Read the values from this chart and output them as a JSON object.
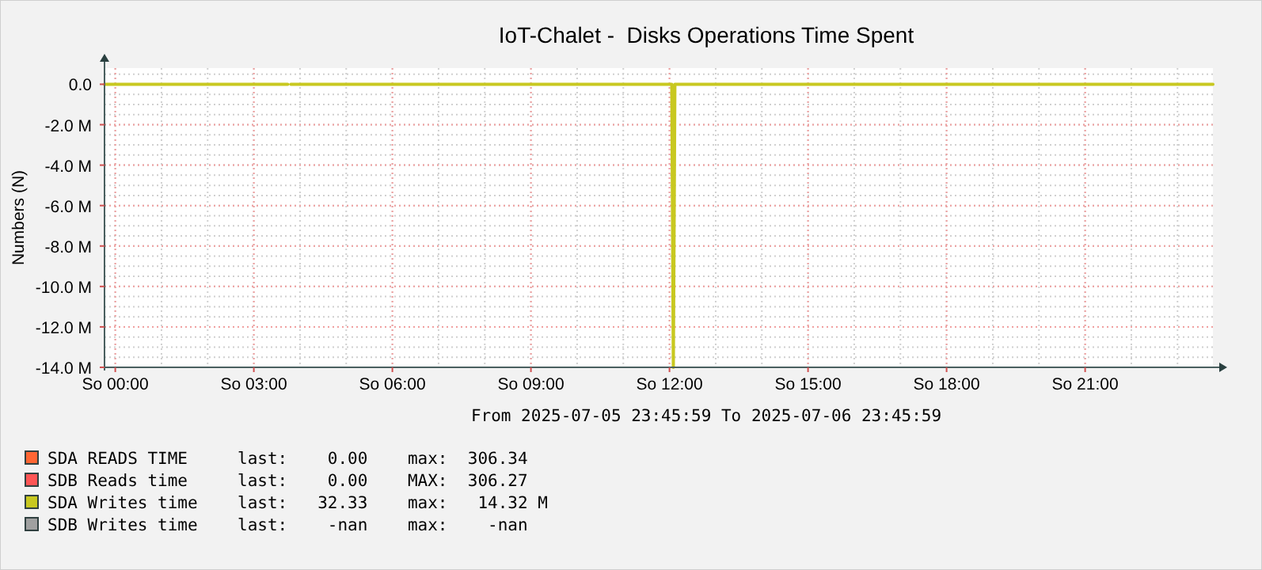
{
  "chart_data": {
    "type": "line",
    "title": "IoT-Chalet -  Disks Operations Time Spent",
    "ylabel": "Numbers (N)",
    "xlim": [
      "2025-07-05T23:46",
      "2025-07-06T23:46"
    ],
    "xticks": [
      {
        "value": "2025-07-06T00:00",
        "label": "So 00:00"
      },
      {
        "value": "2025-07-06T03:00",
        "label": "So 03:00"
      },
      {
        "value": "2025-07-06T06:00",
        "label": "So 06:00"
      },
      {
        "value": "2025-07-06T09:00",
        "label": "So 09:00"
      },
      {
        "value": "2025-07-06T12:00",
        "label": "So 12:00"
      },
      {
        "value": "2025-07-06T15:00",
        "label": "So 15:00"
      },
      {
        "value": "2025-07-06T18:00",
        "label": "So 18:00"
      },
      {
        "value": "2025-07-06T21:00",
        "label": "So 21:00"
      }
    ],
    "ylim": [
      -14000000,
      800000
    ],
    "yticks": [
      {
        "value": 0,
        "label": "0.0"
      },
      {
        "value": -2000000,
        "label": "-2.0 M"
      },
      {
        "value": -4000000,
        "label": "-4.0 M"
      },
      {
        "value": -6000000,
        "label": "-6.0 M"
      },
      {
        "value": -8000000,
        "label": "-8.0 M"
      },
      {
        "value": -10000000,
        "label": "-10.0 M"
      },
      {
        "value": -12000000,
        "label": "-12.0 M"
      },
      {
        "value": -14000000,
        "label": "-14.0 M"
      }
    ],
    "x": [
      "2025-07-05T23:46",
      "2025-07-06T03:44",
      "2025-07-06T03:46",
      "2025-07-06T03:48",
      "2025-07-06T12:03",
      "2025-07-06T12:05",
      "2025-07-06T12:07",
      "2025-07-06T23:46"
    ],
    "series": [
      {
        "name": "SDA READS TIME",
        "color": "#ff6633",
        "values": [
          null,
          null,
          null,
          null,
          null,
          null,
          null,
          null
        ]
      },
      {
        "name": "SDB Reads time",
        "color": "#ff5555",
        "values": [
          null,
          null,
          null,
          null,
          null,
          null,
          null,
          null
        ]
      },
      {
        "name": "SDA Writes time",
        "color": "#c8c820",
        "values": [
          0,
          0,
          null,
          0,
          0,
          -14000000,
          0,
          0
        ]
      },
      {
        "name": "SDB Writes time",
        "color": "#a0a0a0",
        "values": [
          null,
          null,
          null,
          null,
          null,
          null,
          null,
          null
        ]
      }
    ],
    "grid": true,
    "legend": "bottom",
    "line_style": "solid",
    "annotations": [
      "From 2025-07-05 23:45:59 To 2025-07-06 23:45:59",
      "last:    0.00    max:  306.34",
      "last:    0.00    MAX:  306.27",
      "last:   32.33    max:   14.32 M",
      "last:    -nan    max:    -nan"
    ]
  }
}
